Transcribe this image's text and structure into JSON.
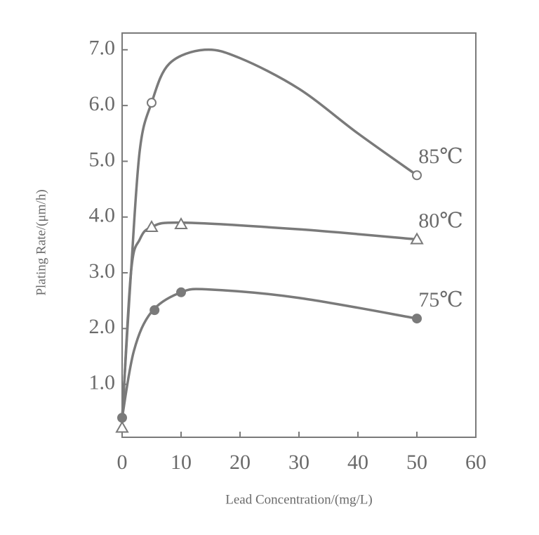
{
  "chart_data": {
    "type": "line",
    "x_label": "Lead Concentration/(mg/L)",
    "y_label": "Plating Rate/(μm/h)",
    "xlim": [
      0,
      60
    ],
    "xticks": [
      0,
      10,
      20,
      30,
      40,
      50,
      60
    ],
    "ylim": [
      0.05,
      7.3
    ],
    "yticks": [
      {
        "value": 1,
        "label": "1.0"
      },
      {
        "value": 2,
        "label": "2.0"
      },
      {
        "value": 3,
        "label": "3.0"
      },
      {
        "value": 4,
        "label": "4.0"
      },
      {
        "value": 5,
        "label": "5.0"
      },
      {
        "value": 6,
        "label": "6.0"
      },
      {
        "value": 7,
        "label": "7.0"
      }
    ],
    "color": "#7a7a7a",
    "series": [
      {
        "name": "85℃",
        "marker": "open-circle",
        "x": [
          5,
          50
        ],
        "values": [
          6.05,
          4.75
        ],
        "fit": {
          "x": [
            0,
            1.5,
            3,
            5,
            8,
            14,
            20,
            30,
            40,
            50
          ],
          "values": [
            0.4,
            3.0,
            5.2,
            6.05,
            6.75,
            7.0,
            6.85,
            6.3,
            5.5,
            4.75
          ]
        }
      },
      {
        "name": "80℃",
        "marker": "open-triangle",
        "x": [
          0,
          5,
          10,
          50
        ],
        "values": [
          0.22,
          3.82,
          3.87,
          3.6
        ],
        "fit": {
          "x": [
            0,
            1.5,
            3,
            5,
            10,
            30,
            50
          ],
          "values": [
            0.3,
            3.0,
            3.6,
            3.82,
            3.9,
            3.78,
            3.6
          ]
        }
      },
      {
        "name": "75℃",
        "marker": "filled-circle",
        "x": [
          0,
          5.5,
          10,
          50
        ],
        "values": [
          0.4,
          2.33,
          2.65,
          2.18
        ],
        "fit": {
          "x": [
            0,
            2,
            5,
            10,
            15,
            30,
            50
          ],
          "values": [
            0.4,
            1.6,
            2.3,
            2.65,
            2.7,
            2.55,
            2.18
          ]
        }
      }
    ]
  }
}
